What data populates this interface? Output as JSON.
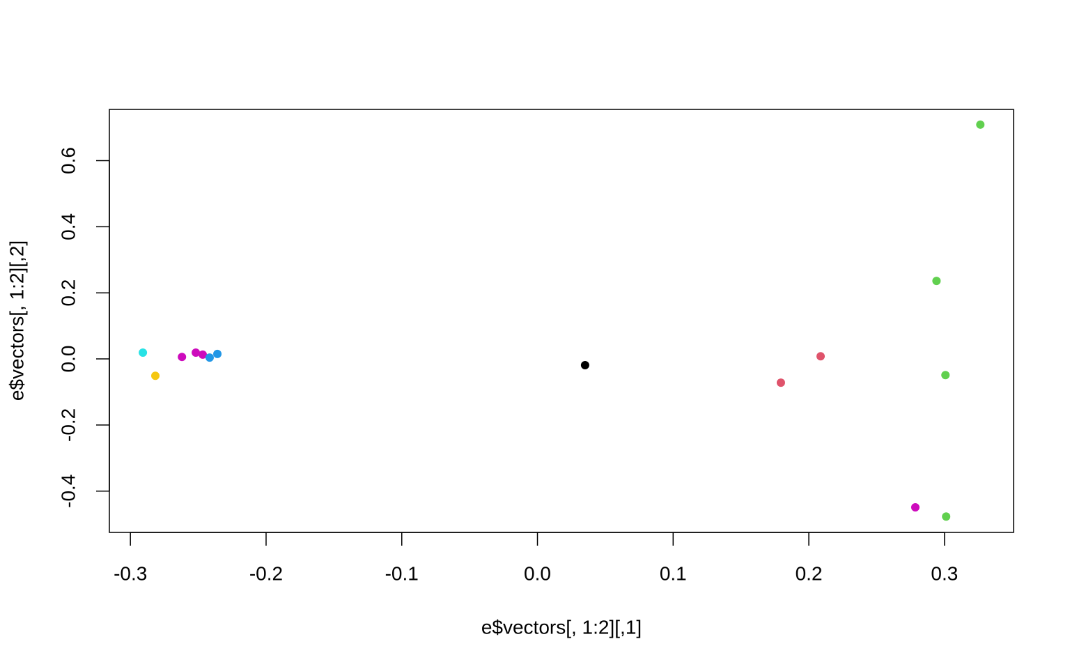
{
  "chart_data": {
    "type": "scatter",
    "x_label": "e$vectors[, 1:2][,1]",
    "y_label": "e$vectors[, 1:2][,2]",
    "x": [
      -0.2908,
      -0.2816,
      -0.262,
      -0.2518,
      -0.2467,
      -0.2416,
      -0.2359,
      0.0351,
      0.1794,
      0.2087,
      0.3264,
      0.2941,
      0.3007,
      0.2785,
      0.3012
    ],
    "y": [
      0.019,
      -0.051,
      0.006,
      0.019,
      0.013,
      0.004,
      0.015,
      -0.019,
      -0.072,
      0.008,
      0.709,
      0.236,
      -0.049,
      -0.449,
      -0.477
    ],
    "colors": [
      "#28E2E5",
      "#F5C710",
      "#CD0BBC",
      "#CD0BBC",
      "#CD0BBC",
      "#2297E6",
      "#2297E6",
      "#000000",
      "#DF536B",
      "#DF536B",
      "#61D04F",
      "#61D04F",
      "#61D04F",
      "#CD0BBC",
      "#61D04F"
    ],
    "xlim": [
      -0.3155,
      0.3509
    ],
    "ylim": [
      -0.525,
      0.755
    ],
    "xticks": [
      -0.3,
      -0.2,
      -0.1,
      {
        "value": 0,
        "label": "0.0"
      },
      0.1,
      0.2,
      0.3
    ],
    "yticks": [
      -0.4,
      -0.2,
      {
        "value": 0,
        "label": "0.0"
      },
      0.2,
      0.4,
      0.6
    ]
  }
}
